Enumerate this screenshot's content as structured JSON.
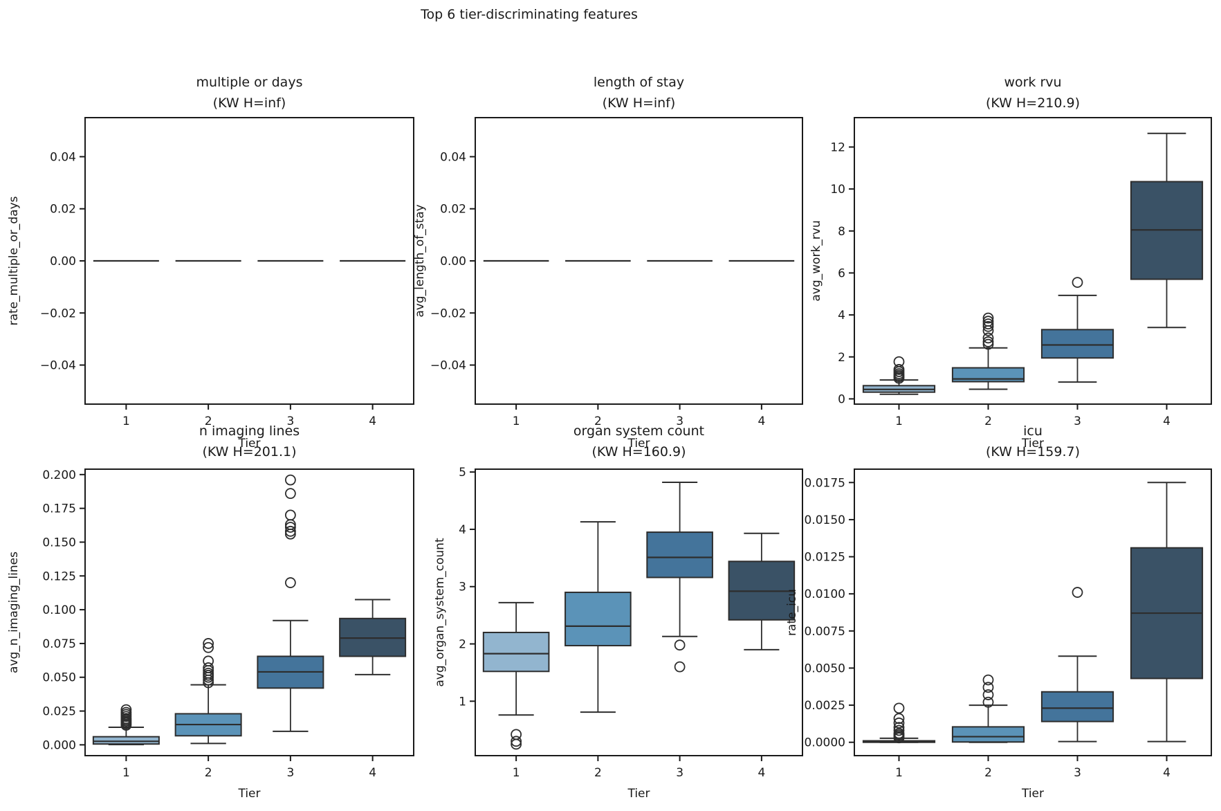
{
  "figure": {
    "title": "Top 6 tier-discriminating features",
    "xlabel": "Tier",
    "xticklabels": [
      "1",
      "2",
      "3",
      "4"
    ],
    "palette": [
      "#92b5cf",
      "#5b93b8",
      "#44749b",
      "#3a5266"
    ],
    "edge_color": "#2d2d2d",
    "axis_color": "#1a1a1a",
    "background": "#ffffff"
  },
  "chart_data": [
    {
      "type": "boxplot",
      "id": "multiple-or-days",
      "title": "multiple or days",
      "subtitle": "(KW H=inf)",
      "kw_h": "inf",
      "ylabel": "rate_multiple_or_days",
      "xlabel": "Tier",
      "ylim": [
        -0.055,
        0.055
      ],
      "yticks": [
        {
          "v": 0.04,
          "label": "0.04"
        },
        {
          "v": 0.02,
          "label": "0.02"
        },
        {
          "v": 0.0,
          "label": "0.00"
        },
        {
          "v": -0.02,
          "label": "−0.02"
        },
        {
          "v": -0.04,
          "label": "−0.04"
        }
      ],
      "categories": [
        "1",
        "2",
        "3",
        "4"
      ],
      "boxes": [
        {
          "tier": "1",
          "whislo": 0,
          "q1": 0,
          "med": 0,
          "q3": 0,
          "whishi": 0,
          "fliers": []
        },
        {
          "tier": "2",
          "whislo": 0,
          "q1": 0,
          "med": 0,
          "q3": 0,
          "whishi": 0,
          "fliers": []
        },
        {
          "tier": "3",
          "whislo": 0,
          "q1": 0,
          "med": 0,
          "q3": 0,
          "whishi": 0,
          "fliers": []
        },
        {
          "tier": "4",
          "whislo": 0,
          "q1": 0,
          "med": 0,
          "q3": 0,
          "whishi": 0,
          "fliers": []
        }
      ]
    },
    {
      "type": "boxplot",
      "id": "length-of-stay",
      "title": "length of stay",
      "subtitle": "(KW H=inf)",
      "kw_h": "inf",
      "ylabel": "avg_length_of_stay",
      "xlabel": "Tier",
      "ylim": [
        -0.055,
        0.055
      ],
      "yticks": [
        {
          "v": 0.04,
          "label": "0.04"
        },
        {
          "v": 0.02,
          "label": "0.02"
        },
        {
          "v": 0.0,
          "label": "0.00"
        },
        {
          "v": -0.02,
          "label": "−0.02"
        },
        {
          "v": -0.04,
          "label": "−0.04"
        }
      ],
      "categories": [
        "1",
        "2",
        "3",
        "4"
      ],
      "boxes": [
        {
          "tier": "1",
          "whislo": 0,
          "q1": 0,
          "med": 0,
          "q3": 0,
          "whishi": 0,
          "fliers": []
        },
        {
          "tier": "2",
          "whislo": 0,
          "q1": 0,
          "med": 0,
          "q3": 0,
          "whishi": 0,
          "fliers": []
        },
        {
          "tier": "3",
          "whislo": 0,
          "q1": 0,
          "med": 0,
          "q3": 0,
          "whishi": 0,
          "fliers": []
        },
        {
          "tier": "4",
          "whislo": 0,
          "q1": 0,
          "med": 0,
          "q3": 0,
          "whishi": 0,
          "fliers": []
        }
      ]
    },
    {
      "type": "boxplot",
      "id": "work-rvu",
      "title": "work rvu",
      "subtitle": "(KW H=210.9)",
      "kw_h": "210.9",
      "ylabel": "avg_work_rvu",
      "xlabel": "Tier",
      "ylim": [
        -0.25,
        13.4
      ],
      "yticks": [
        {
          "v": 0,
          "label": "0"
        },
        {
          "v": 2,
          "label": "2"
        },
        {
          "v": 4,
          "label": "4"
        },
        {
          "v": 6,
          "label": "6"
        },
        {
          "v": 8,
          "label": "8"
        },
        {
          "v": 10,
          "label": "10"
        },
        {
          "v": 12,
          "label": "12"
        }
      ],
      "categories": [
        "1",
        "2",
        "3",
        "4"
      ],
      "boxes": [
        {
          "tier": "1",
          "whislo": 0.22,
          "q1": 0.32,
          "med": 0.45,
          "q3": 0.63,
          "whishi": 0.9,
          "fliers": [
            0.98,
            1.05,
            1.12,
            1.2,
            1.3,
            1.4,
            1.77
          ]
        },
        {
          "tier": "2",
          "whislo": 0.46,
          "q1": 0.82,
          "med": 0.95,
          "q3": 1.48,
          "whishi": 2.43,
          "fliers": [
            2.6,
            2.72,
            2.9,
            3.25,
            3.45,
            3.57,
            3.7,
            3.85
          ]
        },
        {
          "tier": "3",
          "whislo": 0.8,
          "q1": 1.95,
          "med": 2.57,
          "q3": 3.3,
          "whishi": 4.93,
          "fliers": [
            5.55
          ]
        },
        {
          "tier": "4",
          "whislo": 3.4,
          "q1": 5.7,
          "med": 8.05,
          "q3": 10.35,
          "whishi": 12.65,
          "fliers": []
        }
      ]
    },
    {
      "type": "boxplot",
      "id": "n-imaging-lines",
      "title": "n imaging lines",
      "subtitle": "(KW H=201.1)",
      "kw_h": "201.1",
      "ylabel": "avg_n_imaging_lines",
      "xlabel": "Tier",
      "ylim": [
        -0.008,
        0.204
      ],
      "yticks": [
        {
          "v": 0.0,
          "label": "0.000"
        },
        {
          "v": 0.025,
          "label": "0.025"
        },
        {
          "v": 0.05,
          "label": "0.050"
        },
        {
          "v": 0.075,
          "label": "0.075"
        },
        {
          "v": 0.1,
          "label": "0.100"
        },
        {
          "v": 0.125,
          "label": "0.125"
        },
        {
          "v": 0.15,
          "label": "0.150"
        },
        {
          "v": 0.175,
          "label": "0.175"
        },
        {
          "v": 0.2,
          "label": "0.200"
        }
      ],
      "categories": [
        "1",
        "2",
        "3",
        "4"
      ],
      "boxes": [
        {
          "tier": "1",
          "whislo": 0.0002,
          "q1": 0.0006,
          "med": 0.0026,
          "q3": 0.006,
          "whishi": 0.013,
          "fliers": [
            0.0145,
            0.0155,
            0.0165,
            0.0175,
            0.0185,
            0.0195,
            0.021,
            0.0225,
            0.024,
            0.026
          ]
        },
        {
          "tier": "2",
          "whislo": 0.001,
          "q1": 0.0067,
          "med": 0.015,
          "q3": 0.023,
          "whishi": 0.0444,
          "fliers": [
            0.046,
            0.048,
            0.05,
            0.0515,
            0.053,
            0.055,
            0.057,
            0.062,
            0.072,
            0.075
          ]
        },
        {
          "tier": "3",
          "whislo": 0.01,
          "q1": 0.042,
          "med": 0.054,
          "q3": 0.0655,
          "whishi": 0.092,
          "fliers": [
            0.12,
            0.156,
            0.158,
            0.161,
            0.163,
            0.17,
            0.186,
            0.196
          ]
        },
        {
          "tier": "4",
          "whislo": 0.052,
          "q1": 0.0655,
          "med": 0.079,
          "q3": 0.0935,
          "whishi": 0.1075,
          "fliers": []
        }
      ]
    },
    {
      "type": "boxplot",
      "id": "organ-system-count",
      "title": "organ system count",
      "subtitle": "(KW H=160.9)",
      "kw_h": "160.9",
      "ylabel": "avg_organ_system_count",
      "xlabel": "Tier",
      "ylim": [
        0.05,
        5.05
      ],
      "yticks": [
        {
          "v": 1,
          "label": "1"
        },
        {
          "v": 2,
          "label": "2"
        },
        {
          "v": 3,
          "label": "3"
        },
        {
          "v": 4,
          "label": "4"
        },
        {
          "v": 5,
          "label": "5"
        }
      ],
      "categories": [
        "1",
        "2",
        "3",
        "4"
      ],
      "boxes": [
        {
          "tier": "1",
          "whislo": 0.76,
          "q1": 1.52,
          "med": 1.83,
          "q3": 2.2,
          "whishi": 2.72,
          "fliers": [
            0.42,
            0.3,
            0.25
          ]
        },
        {
          "tier": "2",
          "whislo": 0.81,
          "q1": 1.97,
          "med": 2.31,
          "q3": 2.9,
          "whishi": 4.13,
          "fliers": []
        },
        {
          "tier": "3",
          "whislo": 2.13,
          "q1": 3.16,
          "med": 3.51,
          "q3": 3.95,
          "whishi": 4.82,
          "fliers": [
            1.98,
            1.6
          ]
        },
        {
          "tier": "4",
          "whislo": 1.9,
          "q1": 2.42,
          "med": 2.92,
          "q3": 3.44,
          "whishi": 3.93,
          "fliers": []
        }
      ]
    },
    {
      "type": "boxplot",
      "id": "icu",
      "title": "icu",
      "subtitle": "(KW H=159.7)",
      "kw_h": "159.7",
      "ylabel": "rate_icu",
      "xlabel": "Tier",
      "ylim": [
        -0.0009,
        0.0184
      ],
      "yticks": [
        {
          "v": 0.0,
          "label": "0.0000"
        },
        {
          "v": 0.0025,
          "label": "0.0025"
        },
        {
          "v": 0.005,
          "label": "0.0050"
        },
        {
          "v": 0.0075,
          "label": "0.0075"
        },
        {
          "v": 0.01,
          "label": "0.0100"
        },
        {
          "v": 0.0125,
          "label": "0.0125"
        },
        {
          "v": 0.015,
          "label": "0.0150"
        },
        {
          "v": 0.0175,
          "label": "0.0175"
        }
      ],
      "categories": [
        "1",
        "2",
        "3",
        "4"
      ],
      "boxes": [
        {
          "tier": "1",
          "whislo": 0.0,
          "q1": 0.0,
          "med": 5e-05,
          "q3": 0.0001,
          "whishi": 0.00027,
          "fliers": [
            0.0003,
            0.0004,
            0.0005,
            0.0006,
            0.0008,
            0.001,
            0.0013,
            0.0016,
            0.0023
          ]
        },
        {
          "tier": "2",
          "whislo": 0.0,
          "q1": 2e-05,
          "med": 0.00038,
          "q3": 0.00104,
          "whishi": 0.0025,
          "fliers": [
            0.0027,
            0.0032,
            0.0037,
            0.0042
          ]
        },
        {
          "tier": "3",
          "whislo": 5e-05,
          "q1": 0.0014,
          "med": 0.0023,
          "q3": 0.0034,
          "whishi": 0.0058,
          "fliers": [
            0.0101
          ]
        },
        {
          "tier": "4",
          "whislo": 5e-05,
          "q1": 0.0043,
          "med": 0.0087,
          "q3": 0.0131,
          "whishi": 0.0175,
          "fliers": []
        }
      ]
    }
  ]
}
